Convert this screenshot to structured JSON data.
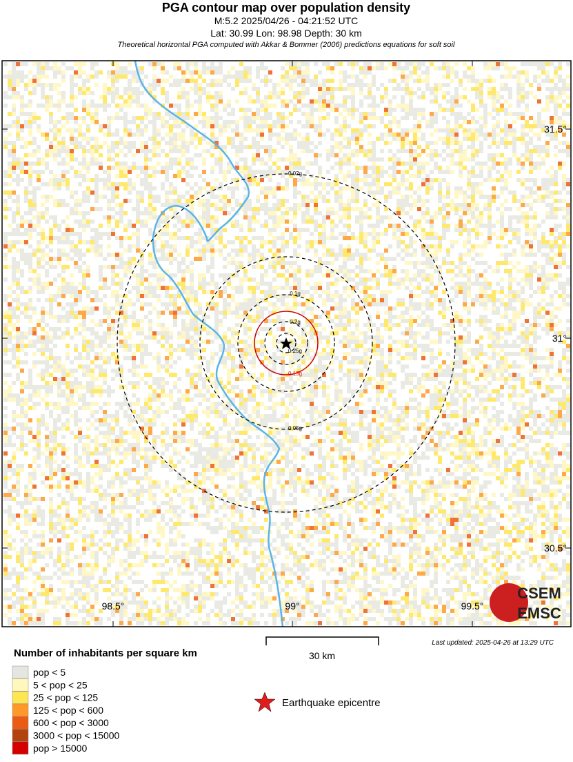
{
  "header": {
    "title": "PGA contour map over population density",
    "line1": "M:5.2 2025/04/26 - 04:21:52 UTC",
    "line2": "Lat: 30.99 Lon: 98.98 Depth: 30 km",
    "note": "Theoretical horizontal PGA computed with Akkar & Bommer (2006) predictions equations for soft soil"
  },
  "map": {
    "lat_labels": [
      "31.5°",
      "31°",
      "30.5°"
    ],
    "lon_labels": [
      "98.5°",
      "99°",
      "99.5°"
    ],
    "contours": [
      {
        "label": "0.02g",
        "color": "#000000"
      },
      {
        "label": "0.05g",
        "color": "#000000"
      },
      {
        "label": "0.1g",
        "color": "#000000"
      },
      {
        "label": "0.15g",
        "color": "#cc0000"
      },
      {
        "label": "0.2g",
        "color": "#000000"
      },
      {
        "label": "0.25g",
        "color": "#000000"
      }
    ]
  },
  "scale_bar": {
    "label": "30 km"
  },
  "last_updated": "Last updated: 2025-04-26 at 13:29 UTC",
  "logo": {
    "top": "CSEM",
    "bottom": "EMSC"
  },
  "legend": {
    "title": "Number of inhabitants per square km",
    "items": [
      {
        "label": "pop < 5",
        "color": "#e6e6e0"
      },
      {
        "label": "5 < pop < 25",
        "color": "#fff7bc"
      },
      {
        "label": "25 < pop < 125",
        "color": "#fee552"
      },
      {
        "label": "125 < pop < 600",
        "color": "#fe9929"
      },
      {
        "label": "600 < pop < 3000",
        "color": "#ec5a14"
      },
      {
        "label": "3000 < pop < 15000",
        "color": "#b4420c"
      },
      {
        "label": "pop > 15000",
        "color": "#d40000"
      }
    ],
    "epicentre": "Earthquake epicentre"
  }
}
